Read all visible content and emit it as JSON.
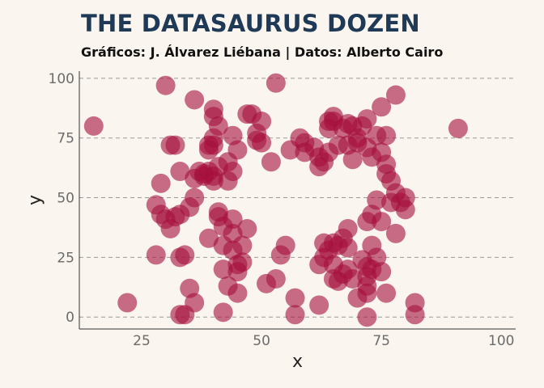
{
  "chart_data": {
    "type": "scatter",
    "title": "THE DATASAURUS DOZEN",
    "subtitle": "Gráficos: J. Álvarez Liébana | Datos: Alberto Cairo",
    "xlabel": "x",
    "ylabel": "y",
    "xlim": [
      12,
      103
    ],
    "ylim": [
      -5,
      103
    ],
    "x_ticks": [
      25,
      50,
      75,
      100
    ],
    "y_ticks": [
      0,
      25,
      50,
      75,
      100
    ],
    "grid": "horizontal dashed",
    "point_color": "#a50f3c",
    "point_opacity": 0.6,
    "points": [
      {
        "x": 15,
        "y": 80
      },
      {
        "x": 22,
        "y": 6
      },
      {
        "x": 30,
        "y": 97
      },
      {
        "x": 28,
        "y": 26
      },
      {
        "x": 28,
        "y": 47
      },
      {
        "x": 29,
        "y": 56
      },
      {
        "x": 29,
        "y": 43
      },
      {
        "x": 30,
        "y": 41
      },
      {
        "x": 31,
        "y": 72
      },
      {
        "x": 32,
        "y": 72
      },
      {
        "x": 31,
        "y": 37
      },
      {
        "x": 32,
        "y": 42
      },
      {
        "x": 33,
        "y": 43
      },
      {
        "x": 33,
        "y": 61
      },
      {
        "x": 33,
        "y": 25
      },
      {
        "x": 34,
        "y": 26
      },
      {
        "x": 33,
        "y": 1
      },
      {
        "x": 34,
        "y": 1
      },
      {
        "x": 35,
        "y": 12
      },
      {
        "x": 35,
        "y": 46
      },
      {
        "x": 36,
        "y": 58
      },
      {
        "x": 36,
        "y": 50
      },
      {
        "x": 36,
        "y": 6
      },
      {
        "x": 36,
        "y": 91
      },
      {
        "x": 37,
        "y": 61
      },
      {
        "x": 38,
        "y": 60
      },
      {
        "x": 38,
        "y": 59
      },
      {
        "x": 39,
        "y": 61
      },
      {
        "x": 39,
        "y": 70
      },
      {
        "x": 39,
        "y": 72
      },
      {
        "x": 39,
        "y": 33
      },
      {
        "x": 40,
        "y": 87
      },
      {
        "x": 40,
        "y": 84
      },
      {
        "x": 40,
        "y": 75
      },
      {
        "x": 40,
        "y": 72
      },
      {
        "x": 40,
        "y": 59
      },
      {
        "x": 40,
        "y": 57
      },
      {
        "x": 41,
        "y": 44
      },
      {
        "x": 41,
        "y": 42
      },
      {
        "x": 41,
        "y": 80
      },
      {
        "x": 41,
        "y": 63
      },
      {
        "x": 42,
        "y": 38
      },
      {
        "x": 42,
        "y": 30
      },
      {
        "x": 42,
        "y": 2
      },
      {
        "x": 42,
        "y": 20
      },
      {
        "x": 43,
        "y": 57
      },
      {
        "x": 43,
        "y": 65
      },
      {
        "x": 43,
        "y": 13
      },
      {
        "x": 44,
        "y": 61
      },
      {
        "x": 44,
        "y": 76
      },
      {
        "x": 44,
        "y": 41
      },
      {
        "x": 44,
        "y": 35
      },
      {
        "x": 44,
        "y": 28
      },
      {
        "x": 45,
        "y": 70
      },
      {
        "x": 45,
        "y": 22
      },
      {
        "x": 45,
        "y": 19
      },
      {
        "x": 45,
        "y": 10
      },
      {
        "x": 46,
        "y": 23
      },
      {
        "x": 46,
        "y": 30
      },
      {
        "x": 47,
        "y": 85
      },
      {
        "x": 47,
        "y": 37
      },
      {
        "x": 48,
        "y": 85
      },
      {
        "x": 49,
        "y": 77
      },
      {
        "x": 49,
        "y": 74
      },
      {
        "x": 50,
        "y": 82
      },
      {
        "x": 50,
        "y": 73
      },
      {
        "x": 51,
        "y": 14
      },
      {
        "x": 52,
        "y": 65
      },
      {
        "x": 53,
        "y": 98
      },
      {
        "x": 53,
        "y": 16
      },
      {
        "x": 54,
        "y": 26
      },
      {
        "x": 55,
        "y": 30
      },
      {
        "x": 56,
        "y": 70
      },
      {
        "x": 57,
        "y": 8
      },
      {
        "x": 57,
        "y": 1
      },
      {
        "x": 58,
        "y": 75
      },
      {
        "x": 59,
        "y": 69
      },
      {
        "x": 59,
        "y": 73
      },
      {
        "x": 61,
        "y": 71
      },
      {
        "x": 62,
        "y": 22
      },
      {
        "x": 62,
        "y": 5
      },
      {
        "x": 62,
        "y": 67
      },
      {
        "x": 62,
        "y": 63
      },
      {
        "x": 63,
        "y": 65
      },
      {
        "x": 63,
        "y": 31
      },
      {
        "x": 63,
        "y": 25
      },
      {
        "x": 64,
        "y": 82
      },
      {
        "x": 64,
        "y": 79
      },
      {
        "x": 64,
        "y": 69
      },
      {
        "x": 64,
        "y": 28
      },
      {
        "x": 65,
        "y": 84
      },
      {
        "x": 65,
        "y": 82
      },
      {
        "x": 65,
        "y": 31
      },
      {
        "x": 65,
        "y": 22
      },
      {
        "x": 65,
        "y": 16
      },
      {
        "x": 66,
        "y": 72
      },
      {
        "x": 66,
        "y": 30
      },
      {
        "x": 66,
        "y": 15
      },
      {
        "x": 67,
        "y": 79
      },
      {
        "x": 67,
        "y": 33
      },
      {
        "x": 67,
        "y": 18
      },
      {
        "x": 68,
        "y": 81
      },
      {
        "x": 68,
        "y": 72
      },
      {
        "x": 68,
        "y": 37
      },
      {
        "x": 68,
        "y": 29
      },
      {
        "x": 68,
        "y": 20
      },
      {
        "x": 69,
        "y": 80
      },
      {
        "x": 69,
        "y": 66
      },
      {
        "x": 69,
        "y": 16
      },
      {
        "x": 70,
        "y": 75
      },
      {
        "x": 70,
        "y": 73
      },
      {
        "x": 70,
        "y": 8
      },
      {
        "x": 71,
        "y": 24
      },
      {
        "x": 71,
        "y": 80
      },
      {
        "x": 72,
        "y": 83
      },
      {
        "x": 72,
        "y": 71
      },
      {
        "x": 72,
        "y": 40
      },
      {
        "x": 72,
        "y": 21
      },
      {
        "x": 72,
        "y": 17
      },
      {
        "x": 72,
        "y": 13
      },
      {
        "x": 72,
        "y": 10
      },
      {
        "x": 72,
        "y": 0
      },
      {
        "x": 73,
        "y": 67
      },
      {
        "x": 73,
        "y": 43
      },
      {
        "x": 73,
        "y": 30
      },
      {
        "x": 73,
        "y": 20
      },
      {
        "x": 74,
        "y": 76
      },
      {
        "x": 74,
        "y": 49
      },
      {
        "x": 74,
        "y": 25
      },
      {
        "x": 75,
        "y": 88
      },
      {
        "x": 75,
        "y": 69
      },
      {
        "x": 75,
        "y": 40
      },
      {
        "x": 75,
        "y": 19
      },
      {
        "x": 76,
        "y": 76
      },
      {
        "x": 76,
        "y": 64
      },
      {
        "x": 76,
        "y": 60
      },
      {
        "x": 76,
        "y": 10
      },
      {
        "x": 77,
        "y": 57
      },
      {
        "x": 77,
        "y": 48
      },
      {
        "x": 78,
        "y": 93
      },
      {
        "x": 78,
        "y": 35
      },
      {
        "x": 78,
        "y": 52
      },
      {
        "x": 79,
        "y": 48
      },
      {
        "x": 80,
        "y": 45
      },
      {
        "x": 80,
        "y": 50
      },
      {
        "x": 82,
        "y": 6
      },
      {
        "x": 82,
        "y": 1
      },
      {
        "x": 91,
        "y": 79
      }
    ]
  }
}
